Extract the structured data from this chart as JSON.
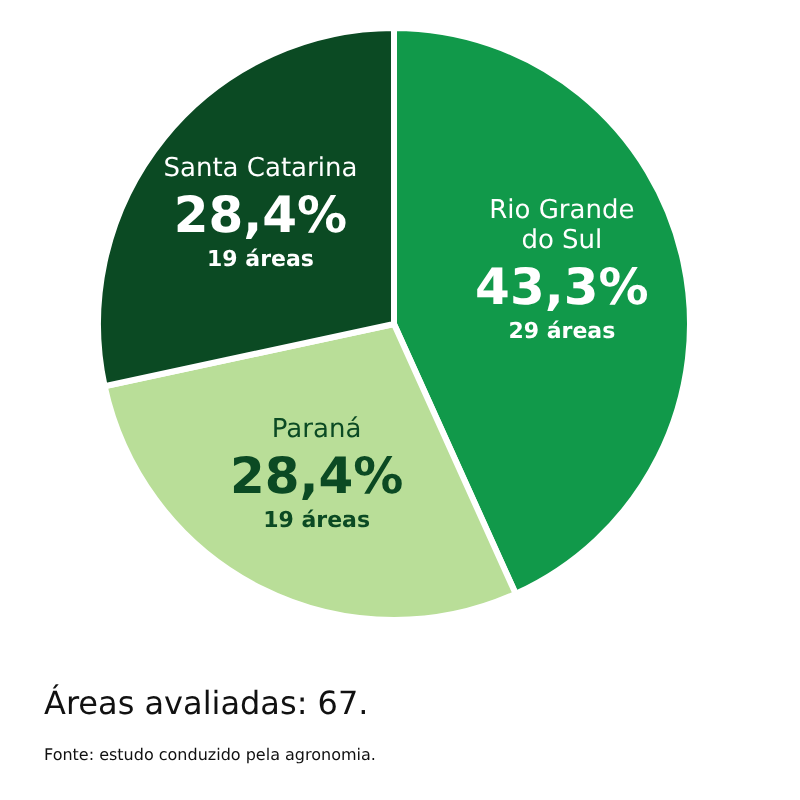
{
  "chart_data": {
    "type": "pie",
    "categories": [
      "Rio Grande do Sul",
      "Paraná",
      "Santa Catarina"
    ],
    "values": [
      43.3,
      28.4,
      28.4
    ],
    "colors": [
      "#11994a",
      "#b9de98",
      "#0b4a23"
    ],
    "value_labels": [
      "43,3%",
      "28,4%",
      "28,4%"
    ],
    "annotations": [
      {
        "text": "29 áreas",
        "x": "Rio Grande do Sul"
      },
      {
        "text": "19 áreas",
        "x": "Paraná"
      },
      {
        "text": "19 áreas",
        "x": "Santa Catarina"
      },
      "Áreas avaliadas: 67.",
      "Fonte: estudo conduzido pela agronomia."
    ]
  }
}
